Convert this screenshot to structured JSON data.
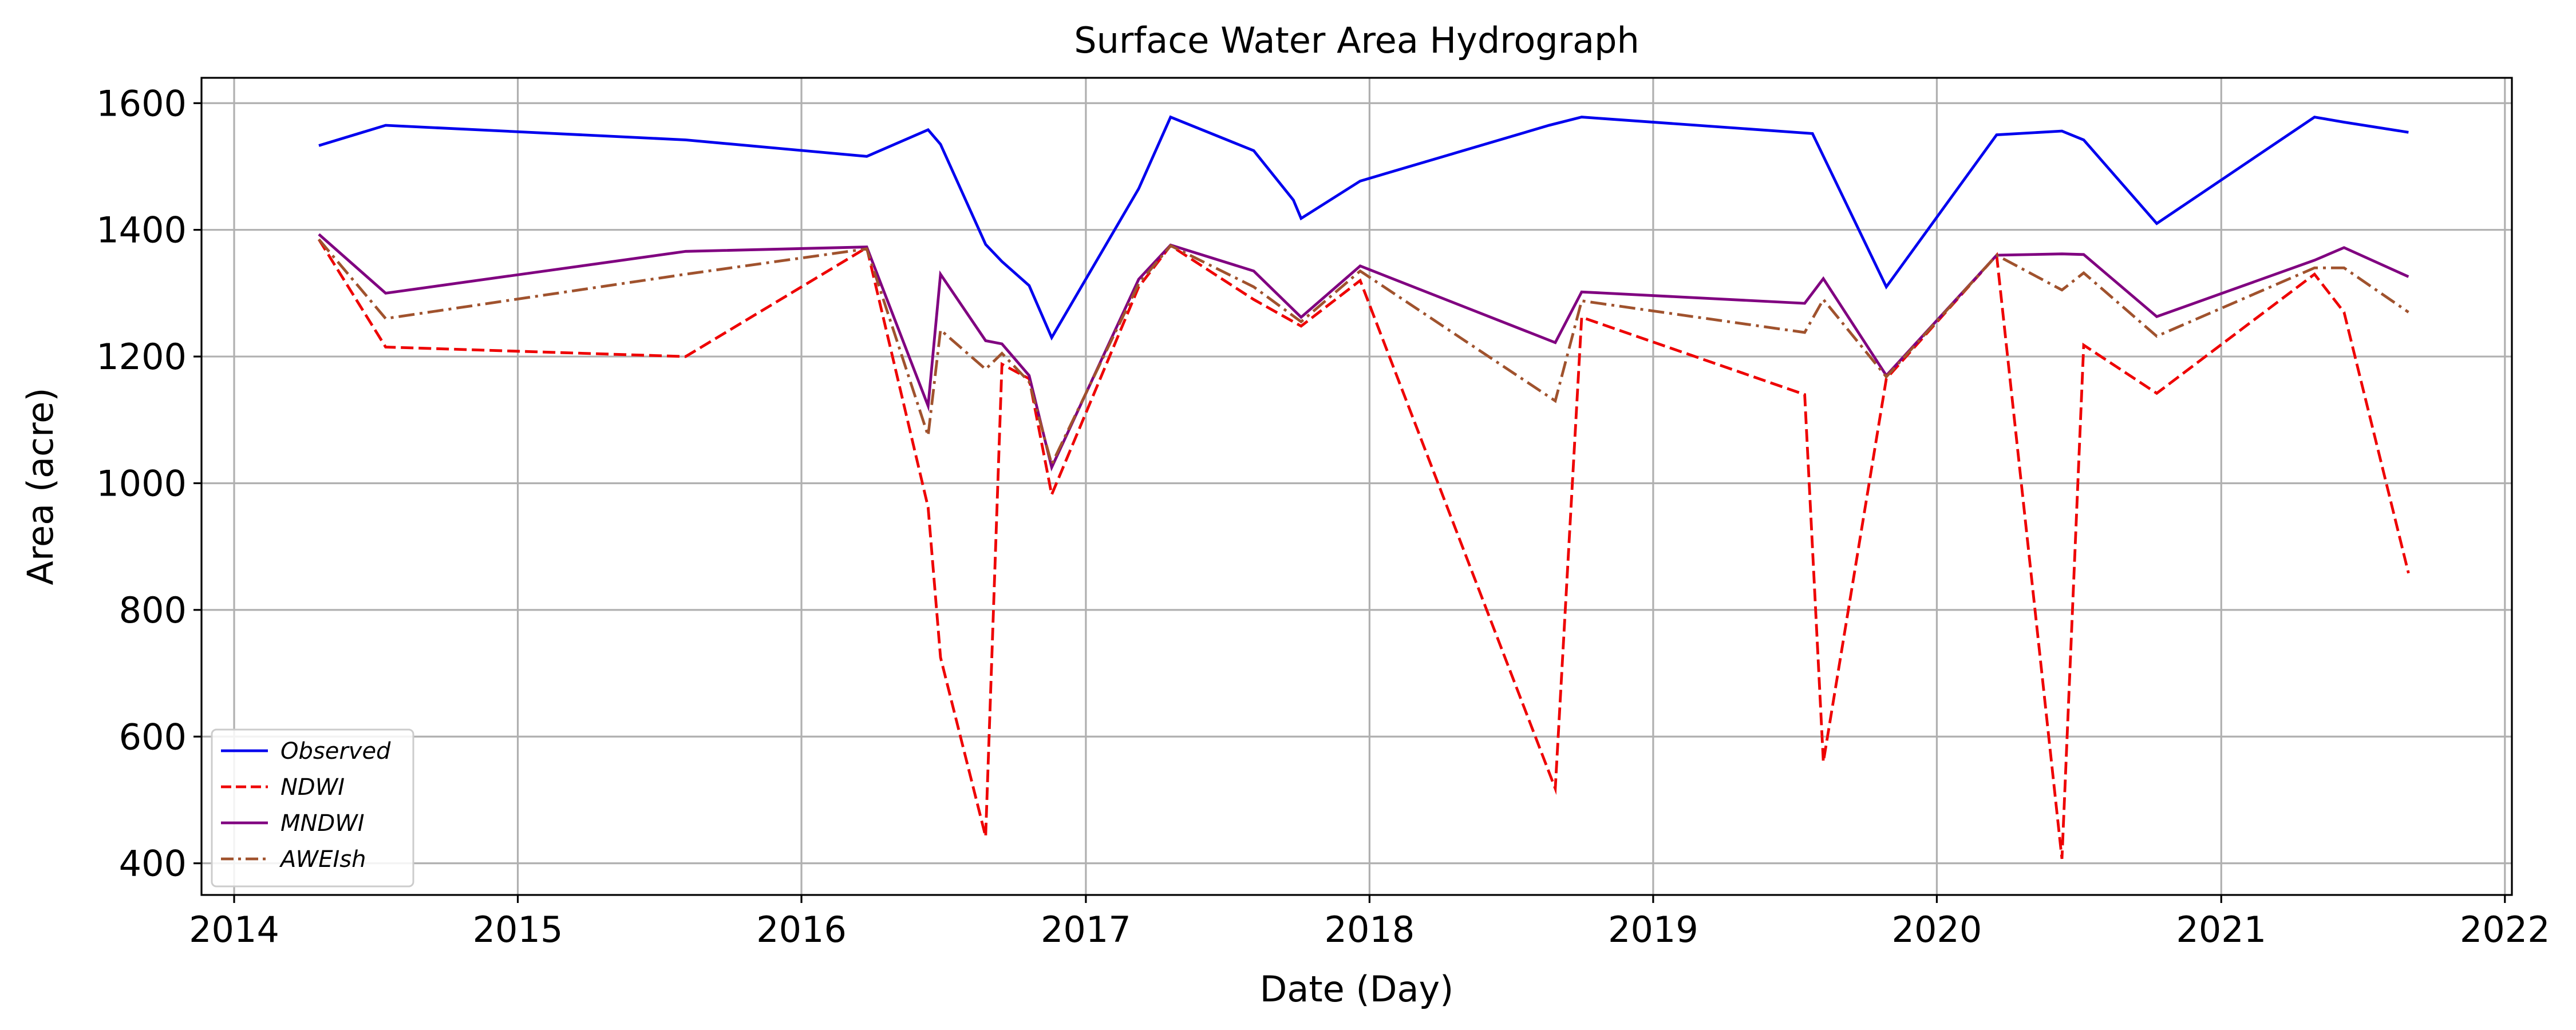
{
  "chart_data": {
    "type": "line",
    "title": "Surface Water Area Hydrograph",
    "xlabel": "Date (Day)",
    "ylabel": "Area (acre)",
    "xlim": [
      "2013-11-20",
      "2022-01-10"
    ],
    "ylim": [
      350,
      1640
    ],
    "x_ticks": [
      "2014",
      "2015",
      "2016",
      "2017",
      "2018",
      "2019",
      "2020",
      "2021",
      "2022"
    ],
    "y_ticks": [
      400,
      600,
      800,
      1000,
      1200,
      1400,
      1600
    ],
    "grid": true,
    "legend_position": "lower-left",
    "series": [
      {
        "name": "Observed",
        "color": "#0000ee",
        "dash": "solid",
        "points": [
          [
            "2014-04-20",
            1533
          ],
          [
            "2014-07-15",
            1565
          ],
          [
            "2015-08-05",
            1542
          ],
          [
            "2016-03-25",
            1516
          ],
          [
            "2016-06-12",
            1558
          ],
          [
            "2016-06-28",
            1535
          ],
          [
            "2016-08-25",
            1377
          ],
          [
            "2016-09-15",
            1350
          ],
          [
            "2016-10-20",
            1312
          ],
          [
            "2016-11-18",
            1230
          ],
          [
            "2017-03-10",
            1465
          ],
          [
            "2017-04-20",
            1578
          ],
          [
            "2017-08-05",
            1525
          ],
          [
            "2017-09-25",
            1447
          ],
          [
            "2017-10-05",
            1418
          ],
          [
            "2017-12-20",
            1477
          ],
          [
            "2018-08-20",
            1565
          ],
          [
            "2018-10-01",
            1578
          ],
          [
            "2019-07-25",
            1552
          ],
          [
            "2019-10-28",
            1310
          ],
          [
            "2020-03-18",
            1550
          ],
          [
            "2020-06-10",
            1556
          ],
          [
            "2020-07-08",
            1542
          ],
          [
            "2020-10-10",
            1410
          ],
          [
            "2021-05-01",
            1578
          ],
          [
            "2021-06-08",
            1570
          ],
          [
            "2021-08-30",
            1554
          ]
        ]
      },
      {
        "name": "NDWI",
        "color": "#ee0000",
        "dash": "dashed",
        "points": [
          [
            "2014-04-20",
            1385
          ],
          [
            "2014-07-15",
            1215
          ],
          [
            "2015-08-05",
            1200
          ],
          [
            "2016-03-25",
            1372
          ],
          [
            "2016-06-12",
            962
          ],
          [
            "2016-06-28",
            725
          ],
          [
            "2016-08-25",
            442
          ],
          [
            "2016-09-15",
            1188
          ],
          [
            "2016-10-20",
            1165
          ],
          [
            "2016-11-18",
            982
          ],
          [
            "2017-03-10",
            1310
          ],
          [
            "2017-04-20",
            1375
          ],
          [
            "2017-08-05",
            1290
          ],
          [
            "2017-10-05",
            1248
          ],
          [
            "2017-12-20",
            1320
          ],
          [
            "2018-08-28",
            518
          ],
          [
            "2018-10-01",
            1262
          ],
          [
            "2019-07-15",
            1140
          ],
          [
            "2019-08-08",
            560
          ],
          [
            "2019-10-28",
            1165
          ],
          [
            "2020-03-18",
            1360
          ],
          [
            "2020-06-10",
            407
          ],
          [
            "2020-07-08",
            1218
          ],
          [
            "2020-10-10",
            1142
          ],
          [
            "2021-05-01",
            1330
          ],
          [
            "2021-06-08",
            1270
          ],
          [
            "2021-08-30",
            858
          ]
        ]
      },
      {
        "name": "MNDWI",
        "color": "#800080",
        "dash": "solid",
        "points": [
          [
            "2014-04-20",
            1393
          ],
          [
            "2014-07-15",
            1300
          ],
          [
            "2015-08-05",
            1366
          ],
          [
            "2016-03-25",
            1373
          ],
          [
            "2016-06-12",
            1122
          ],
          [
            "2016-06-28",
            1330
          ],
          [
            "2016-08-25",
            1225
          ],
          [
            "2016-09-15",
            1220
          ],
          [
            "2016-10-20",
            1170
          ],
          [
            "2016-11-18",
            1025
          ],
          [
            "2017-03-10",
            1322
          ],
          [
            "2017-04-20",
            1376
          ],
          [
            "2017-08-05",
            1335
          ],
          [
            "2017-10-05",
            1262
          ],
          [
            "2017-12-20",
            1343
          ],
          [
            "2018-08-28",
            1222
          ],
          [
            "2018-10-01",
            1302
          ],
          [
            "2019-07-15",
            1284
          ],
          [
            "2019-08-08",
            1323
          ],
          [
            "2019-10-28",
            1170
          ],
          [
            "2020-03-18",
            1360
          ],
          [
            "2020-06-10",
            1362
          ],
          [
            "2020-07-08",
            1361
          ],
          [
            "2020-10-10",
            1263
          ],
          [
            "2021-05-01",
            1352
          ],
          [
            "2021-06-08",
            1372
          ],
          [
            "2021-08-30",
            1326
          ]
        ]
      },
      {
        "name": "AWEIsh",
        "color": "#a0522d",
        "dash": "dashdot",
        "points": [
          [
            "2014-04-20",
            1385
          ],
          [
            "2014-07-15",
            1260
          ],
          [
            "2015-08-05",
            1330
          ],
          [
            "2016-03-25",
            1370
          ],
          [
            "2016-06-12",
            1075
          ],
          [
            "2016-06-28",
            1242
          ],
          [
            "2016-08-25",
            1180
          ],
          [
            "2016-09-15",
            1205
          ],
          [
            "2016-10-20",
            1160
          ],
          [
            "2016-11-18",
            1030
          ],
          [
            "2017-03-10",
            1315
          ],
          [
            "2017-04-20",
            1375
          ],
          [
            "2017-08-05",
            1310
          ],
          [
            "2017-10-05",
            1255
          ],
          [
            "2017-12-20",
            1335
          ],
          [
            "2018-08-28",
            1130
          ],
          [
            "2018-10-01",
            1288
          ],
          [
            "2019-07-15",
            1238
          ],
          [
            "2019-08-08",
            1290
          ],
          [
            "2019-10-28",
            1168
          ],
          [
            "2020-03-18",
            1360
          ],
          [
            "2020-06-10",
            1305
          ],
          [
            "2020-07-08",
            1332
          ],
          [
            "2020-10-10",
            1232
          ],
          [
            "2021-05-01",
            1340
          ],
          [
            "2021-06-08",
            1340
          ],
          [
            "2021-08-30",
            1270
          ]
        ]
      }
    ]
  }
}
